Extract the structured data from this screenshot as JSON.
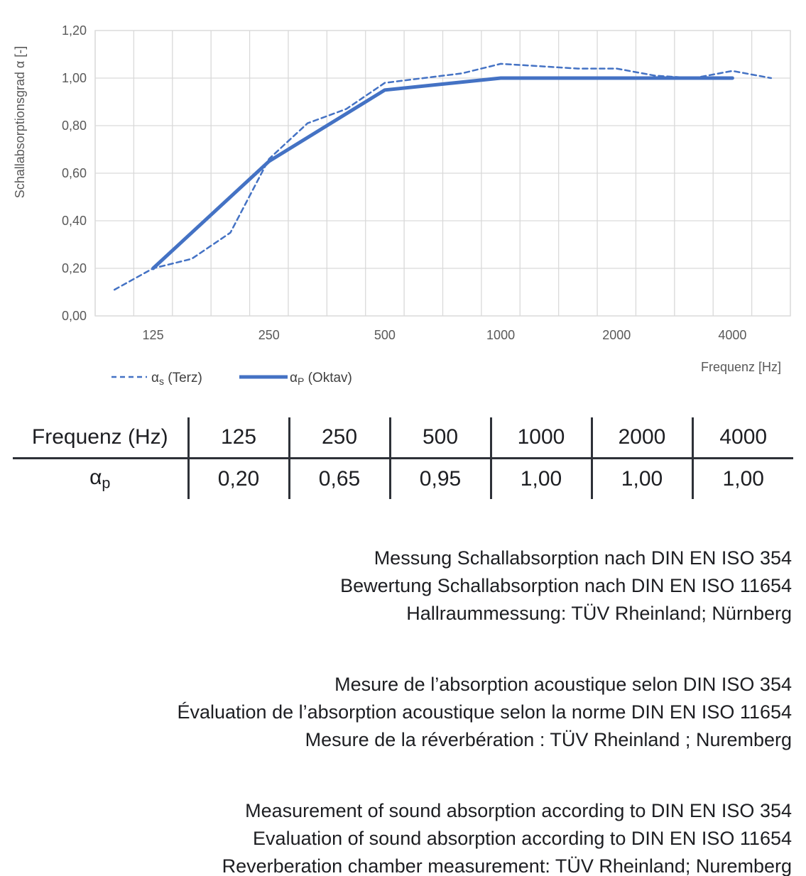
{
  "chart_data": {
    "type": "line",
    "title": "",
    "ylabel": "Schallabsorptionsgrad α [-]",
    "xlabel": "Frequenz [Hz]",
    "ylim": [
      0,
      1.2
    ],
    "grid": true,
    "legend_position": "bottom-left",
    "categories": [
      100,
      125,
      160,
      200,
      250,
      315,
      400,
      500,
      630,
      800,
      1000,
      1250,
      1600,
      2000,
      2500,
      3150,
      4000,
      5000
    ],
    "y_ticks": [
      {
        "label": "0,00",
        "value": 0.0
      },
      {
        "label": "0,20",
        "value": 0.2
      },
      {
        "label": "0,40",
        "value": 0.4
      },
      {
        "label": "0,60",
        "value": 0.6
      },
      {
        "label": "0,80",
        "value": 0.8
      },
      {
        "label": "1,00",
        "value": 1.0
      },
      {
        "label": "1,20",
        "value": 1.2
      }
    ],
    "x_ticks": [
      {
        "label": "125",
        "slot": 1
      },
      {
        "label": "250",
        "slot": 4
      },
      {
        "label": "500",
        "slot": 7
      },
      {
        "label": "1000",
        "slot": 10
      },
      {
        "label": "2000",
        "slot": 13
      },
      {
        "label": "4000",
        "slot": 16
      }
    ],
    "series": [
      {
        "id": "alpha-s-terz",
        "legend": {
          "alpha": "α",
          "sub": "s",
          "rest": " (Terz)"
        },
        "style": "dashed",
        "slot_indices": [
          0,
          1,
          2,
          3,
          4,
          5,
          6,
          7,
          8,
          9,
          10,
          11,
          12,
          13,
          14,
          15,
          16,
          17
        ],
        "values": [
          0.11,
          0.2,
          0.24,
          0.35,
          0.66,
          0.81,
          0.87,
          0.98,
          1.0,
          1.02,
          1.06,
          1.05,
          1.04,
          1.04,
          1.01,
          1.0,
          1.03,
          1.0
        ]
      },
      {
        "id": "alpha-p-oktav",
        "legend": {
          "alpha": "α",
          "sub": "P",
          "rest": " (Oktav)"
        },
        "style": "solid",
        "slot_indices": [
          1,
          4,
          7,
          10,
          13,
          16
        ],
        "values": [
          0.2,
          0.65,
          0.95,
          1.0,
          1.0,
          1.0
        ]
      }
    ],
    "colors": {
      "line_blue": "#4472C4",
      "gridline": "#D9D9D9",
      "chart_text": "#595959"
    }
  },
  "table": {
    "header": "Frequenz (Hz)",
    "frequencies": [
      "125",
      "250",
      "500",
      "1000",
      "2000",
      "4000"
    ],
    "row_label": {
      "main": "α",
      "sub": "p"
    },
    "values": [
      "0,20",
      "0,65",
      "0,95",
      "1,00",
      "1,00",
      "1,00"
    ],
    "line_color": "#2e3138"
  },
  "notes": {
    "de": [
      "Messung Schallabsorption nach DIN EN ISO 354",
      "Bewertung Schallabsorption nach DIN EN ISO 11654",
      "Hallraummessung: TÜV Rheinland; Nürnberg"
    ],
    "fr": [
      "Mesure de l’absorption acoustique selon DIN ISO 354",
      "Évaluation de l’absorption acoustique selon la norme DIN EN ISO 11654",
      "Mesure de la réverbération : TÜV Rheinland ; Nuremberg"
    ],
    "en": [
      "Measurement of sound absorption according to DIN EN ISO 354",
      "Evaluation of sound absorption according to DIN EN ISO 11654",
      "Reverberation chamber measurement: TÜV Rheinland; Nuremberg"
    ]
  }
}
